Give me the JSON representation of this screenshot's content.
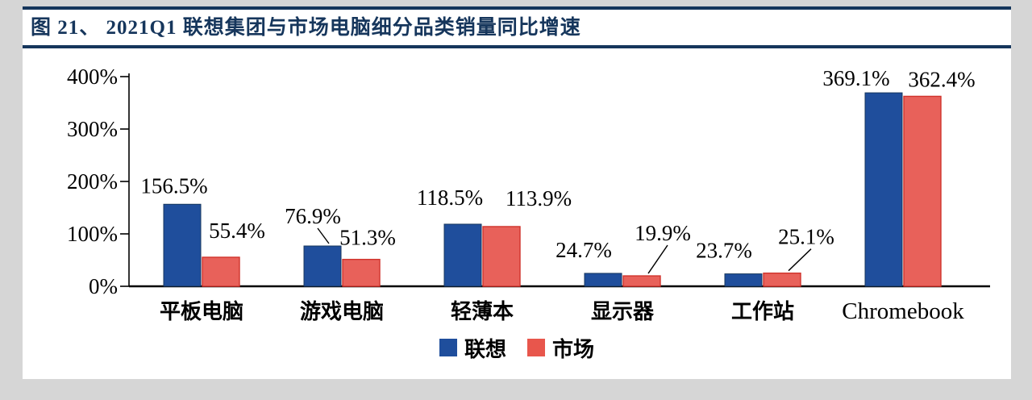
{
  "title": "图 21、 2021Q1 联想集团与市场电脑细分品类销量同比增速",
  "colors": {
    "navy": "#16365c",
    "lenovo_bar": "#1f4e9c",
    "lenovo_bar_border": "#17375e",
    "market_bar": "#e8615a",
    "market_bar_border": "#d0342c",
    "axis": "#000000",
    "panel_bg": "#ffffff",
    "page_bg": "#d6d6d6"
  },
  "legend": [
    {
      "name": "联想",
      "color": "#1f4e9c"
    },
    {
      "name": "市场",
      "color": "#e8564c"
    }
  ],
  "chart_data": {
    "type": "bar",
    "title": "2021Q1 联想集团与市场电脑细分品类销量同比增速",
    "categories": [
      "平板电脑",
      "游戏电脑",
      "轻薄本",
      "显示器",
      "工作站",
      "Chromebook"
    ],
    "series": [
      {
        "name": "联想",
        "color": "#1f4e9c",
        "values": [
          156.5,
          76.9,
          118.5,
          24.7,
          23.7,
          369.1
        ]
      },
      {
        "name": "市场",
        "color": "#e8615a",
        "values": [
          55.4,
          51.3,
          113.9,
          19.9,
          25.1,
          362.4
        ]
      }
    ],
    "data_labels": {
      "联想": [
        "156.5%",
        "76.9%",
        "118.5%",
        "24.7%",
        "23.7%",
        "369.1%"
      ],
      "市场": [
        "55.4%",
        "51.3%",
        "113.9%",
        "19.9%",
        "25.1%",
        "362.4%"
      ]
    },
    "ylim": [
      0,
      400
    ],
    "yticks": [
      "0%",
      "100%",
      "200%",
      "300%",
      "400%"
    ],
    "value_suffix": "%",
    "grid": false,
    "legend_position": "bottom"
  }
}
